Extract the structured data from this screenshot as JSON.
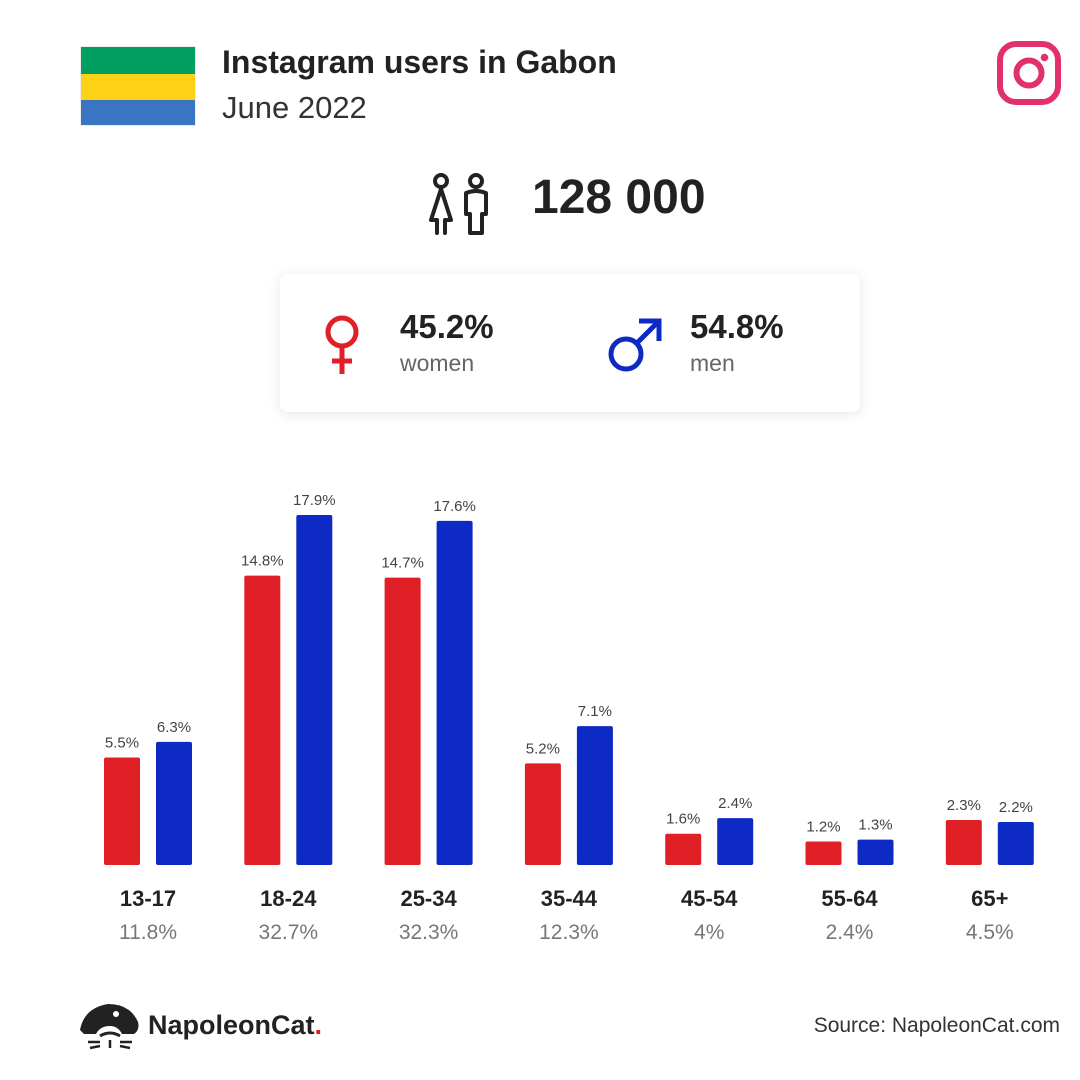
{
  "header": {
    "title": "Instagram users in Gabon",
    "subtitle": "June 2022"
  },
  "total_users": "128 000",
  "gender": {
    "women_pct": "45.2%",
    "women_label": "women",
    "men_pct": "54.8%",
    "men_label": "men"
  },
  "colors": {
    "women": "#e01f26",
    "men": "#0e2ac4",
    "flag_green": "#009e60",
    "flag_yellow": "#fcd116",
    "flag_blue": "#3a75c4",
    "instagram": "#e1306c"
  },
  "chart_data": {
    "type": "bar",
    "categories": [
      "13-17",
      "18-24",
      "25-34",
      "35-44",
      "45-54",
      "55-64",
      "65+"
    ],
    "category_totals": [
      "11.8%",
      "32.7%",
      "32.3%",
      "12.3%",
      "4%",
      "2.4%",
      "4.5%"
    ],
    "series": [
      {
        "name": "women",
        "values": [
          5.5,
          14.8,
          14.7,
          5.2,
          1.6,
          1.2,
          2.3
        ],
        "labels": [
          "5.5%",
          "14.8%",
          "14.7%",
          "5.2%",
          "1.6%",
          "1.2%",
          "2.3%"
        ]
      },
      {
        "name": "men",
        "values": [
          6.3,
          17.9,
          17.6,
          7.1,
          2.4,
          1.3,
          2.2
        ],
        "labels": [
          "6.3%",
          "17.9%",
          "17.6%",
          "7.1%",
          "2.4%",
          "1.3%",
          "2.2%"
        ]
      }
    ],
    "ylim": [
      0,
      17.9
    ],
    "grid": false,
    "legend": "none"
  },
  "footer": {
    "brand": "NapoleonCat",
    "brand_dot": ".",
    "source": "Source: NapoleonCat.com"
  }
}
